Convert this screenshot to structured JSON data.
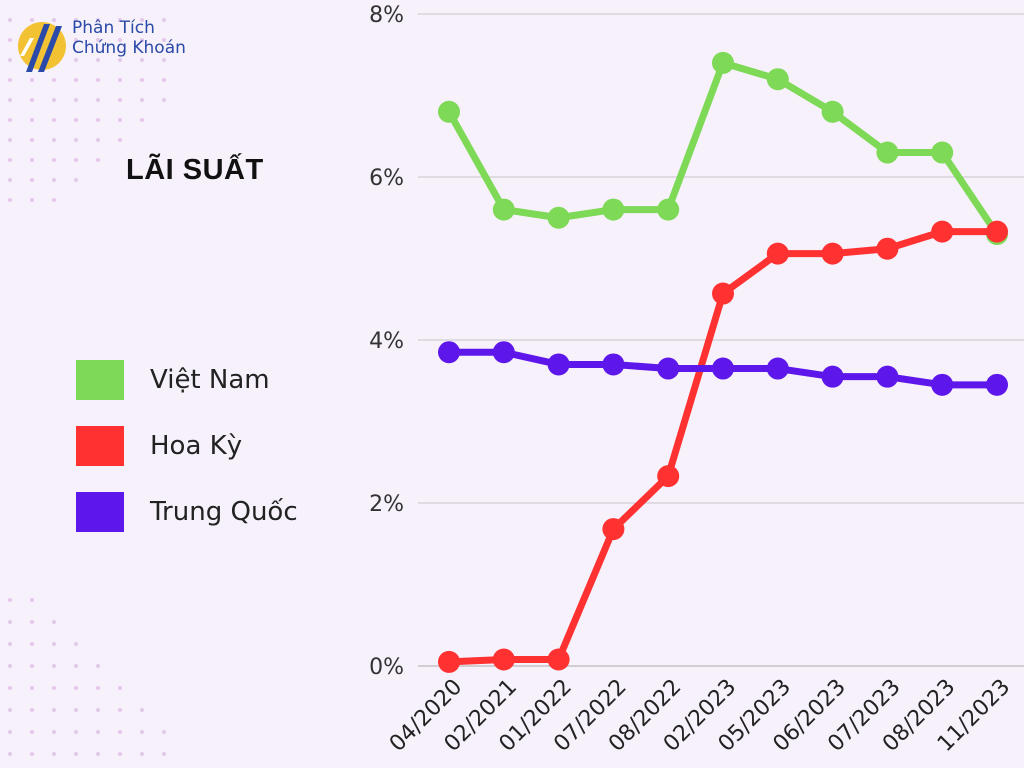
{
  "logo": {
    "line1": "Phân Tích",
    "line2": "Chứng Khoán"
  },
  "chart_data": {
    "type": "line",
    "title": "LÃI SUẤT",
    "categories": [
      "04/2020",
      "02/2021",
      "01/2022",
      "07/2022",
      "08/2022",
      "02/2023",
      "05/2023",
      "06/2023",
      "07/2023",
      "08/2023",
      "11/2023"
    ],
    "ylim": [
      0,
      8
    ],
    "yticks": [
      0,
      2,
      4,
      6,
      8
    ],
    "ytick_labels": [
      "0%",
      "2%",
      "4%",
      "6%",
      "8%"
    ],
    "grid": true,
    "legend_position": "left",
    "series": [
      {
        "name": "Việt Nam",
        "color": "#7ed957",
        "values": [
          6.8,
          5.6,
          5.5,
          5.6,
          5.6,
          7.4,
          7.2,
          6.8,
          6.3,
          6.3,
          5.3
        ]
      },
      {
        "name": "Hoa Kỳ",
        "color": "#ff3131",
        "values": [
          0.05,
          0.08,
          0.08,
          1.68,
          2.33,
          4.57,
          5.06,
          5.06,
          5.12,
          5.33,
          5.33
        ]
      },
      {
        "name": "Trung Quốc",
        "color": "#5e17eb",
        "values": [
          3.85,
          3.85,
          3.7,
          3.7,
          3.65,
          3.65,
          3.65,
          3.55,
          3.55,
          3.45,
          3.45
        ]
      }
    ]
  }
}
